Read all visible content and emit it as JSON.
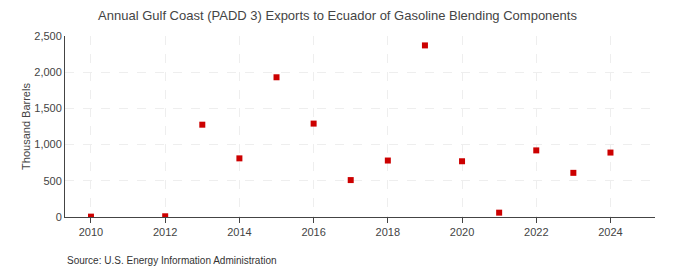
{
  "chart_data": {
    "type": "scatter",
    "title": "Annual Gulf Coast (PADD 3) Exports to Ecuador of Gasoline Blending Components",
    "ylabel": "Thousand Barrels",
    "annotations": [
      "Source: U.S. Energy Information Administration"
    ],
    "x": [
      2010,
      2012,
      2013,
      2014,
      2015,
      2016,
      2017,
      2018,
      2019,
      2020,
      2021,
      2022,
      2023,
      2024
    ],
    "values": [
      5,
      10,
      1275,
      810,
      1930,
      1290,
      510,
      780,
      2370,
      770,
      60,
      920,
      610,
      890
    ],
    "color": "#cc0000",
    "marker": "square",
    "xlim": [
      2009.3,
      2025.2
    ],
    "xticks": [
      2010,
      2012,
      2014,
      2016,
      2018,
      2020,
      2022,
      2024
    ],
    "ylim": [
      0,
      2500
    ],
    "yticks": [
      0,
      500,
      {
        "value": 1000,
        "label": "1,000"
      },
      {
        "value": 1500,
        "label": "1,500"
      },
      {
        "value": 2000,
        "label": "2,000"
      },
      {
        "value": 2500,
        "label": "2,500"
      }
    ],
    "grid": true
  }
}
